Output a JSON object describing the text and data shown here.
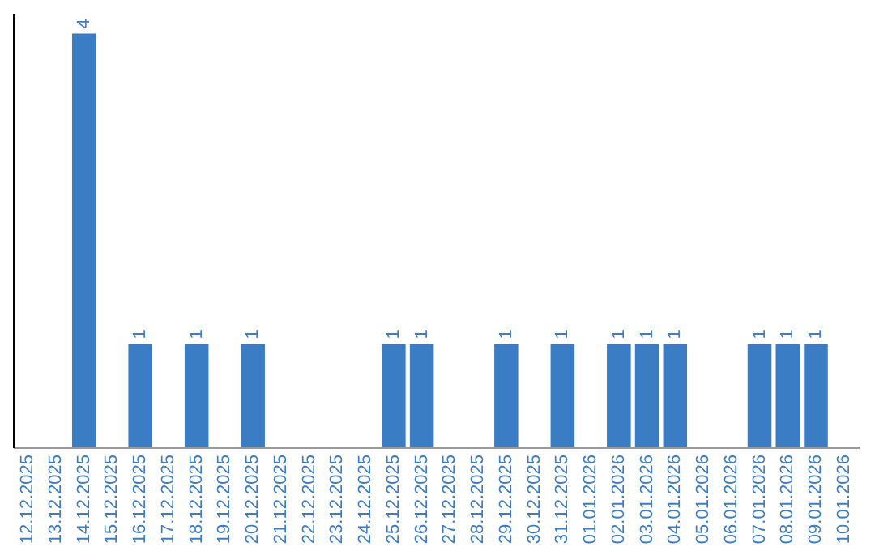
{
  "chart_data": {
    "type": "bar",
    "categories": [
      "12.12.2025",
      "13.12.2025",
      "14.12.2025",
      "15.12.2025",
      "16.12.2025",
      "17.12.2025",
      "18.12.2025",
      "19.12.2025",
      "20.12.2025",
      "21.12.2025",
      "22.12.2025",
      "23.12.2025",
      "24.12.2025",
      "25.12.2025",
      "26.12.2025",
      "27.12.2025",
      "28.12.2025",
      "29.12.2025",
      "30.12.2025",
      "31.12.2025",
      "01.01.2026",
      "02.01.2026",
      "03.01.2026",
      "04.01.2026",
      "05.01.2026",
      "06.01.2026",
      "07.01.2026",
      "08.01.2026",
      "09.01.2026",
      "10.01.2026"
    ],
    "values": [
      0,
      0,
      4,
      0,
      1,
      0,
      1,
      0,
      1,
      0,
      0,
      0,
      0,
      1,
      1,
      0,
      0,
      1,
      0,
      1,
      0,
      1,
      1,
      1,
      0,
      0,
      1,
      1,
      1,
      0
    ],
    "value_labels": [
      null,
      null,
      "4",
      null,
      "1",
      null,
      "1",
      null,
      "1",
      null,
      null,
      null,
      null,
      "1",
      "1",
      null,
      null,
      "1",
      null,
      "1",
      null,
      "1",
      "1",
      "1",
      null,
      null,
      "1",
      "1",
      "1",
      null
    ],
    "color": "#3b7dc4"
  }
}
